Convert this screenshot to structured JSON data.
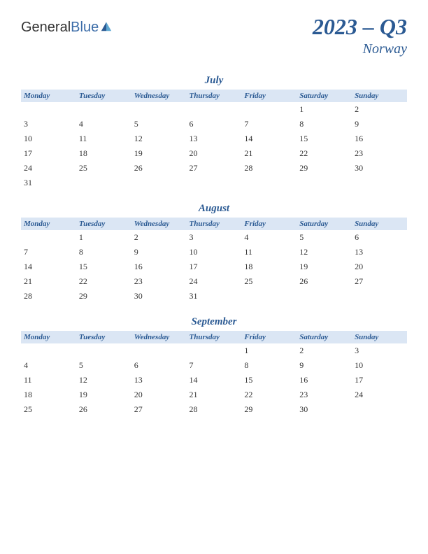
{
  "logo": {
    "part1": "General",
    "part2": "Blue"
  },
  "header": {
    "period": "2023 – Q3",
    "country": "Norway"
  },
  "dayHeaders": [
    "Monday",
    "Tuesday",
    "Wednesday",
    "Thursday",
    "Friday",
    "Saturday",
    "Sunday"
  ],
  "colors": {
    "headerBg": "#dbe6f4",
    "accentText": "#2b5a93",
    "bodyText": "#333333"
  },
  "months": [
    {
      "name": "July",
      "weeks": [
        [
          "",
          "",
          "",
          "",
          "",
          "1",
          "2"
        ],
        [
          "3",
          "4",
          "5",
          "6",
          "7",
          "8",
          "9"
        ],
        [
          "10",
          "11",
          "12",
          "13",
          "14",
          "15",
          "16"
        ],
        [
          "17",
          "18",
          "19",
          "20",
          "21",
          "22",
          "23"
        ],
        [
          "24",
          "25",
          "26",
          "27",
          "28",
          "29",
          "30"
        ],
        [
          "31",
          "",
          "",
          "",
          "",
          "",
          ""
        ]
      ]
    },
    {
      "name": "August",
      "weeks": [
        [
          "",
          "1",
          "2",
          "3",
          "4",
          "5",
          "6"
        ],
        [
          "7",
          "8",
          "9",
          "10",
          "11",
          "12",
          "13"
        ],
        [
          "14",
          "15",
          "16",
          "17",
          "18",
          "19",
          "20"
        ],
        [
          "21",
          "22",
          "23",
          "24",
          "25",
          "26",
          "27"
        ],
        [
          "28",
          "29",
          "30",
          "31",
          "",
          "",
          ""
        ]
      ]
    },
    {
      "name": "September",
      "weeks": [
        [
          "",
          "",
          "",
          "",
          "1",
          "2",
          "3"
        ],
        [
          "4",
          "5",
          "6",
          "7",
          "8",
          "9",
          "10"
        ],
        [
          "11",
          "12",
          "13",
          "14",
          "15",
          "16",
          "17"
        ],
        [
          "18",
          "19",
          "20",
          "21",
          "22",
          "23",
          "24"
        ],
        [
          "25",
          "26",
          "27",
          "28",
          "29",
          "30",
          ""
        ]
      ]
    }
  ]
}
